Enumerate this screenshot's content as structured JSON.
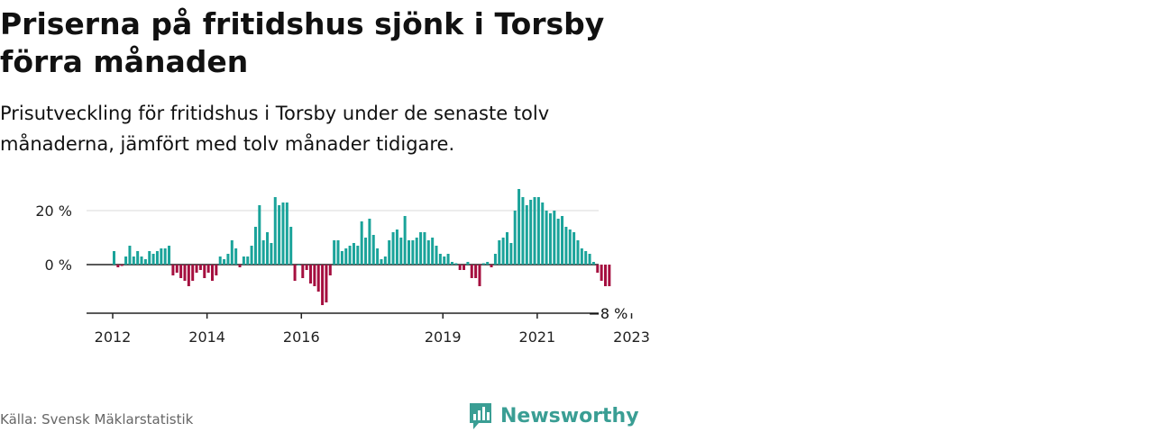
{
  "title": "Priserna på fritidshus sjönk i Torsby förra månaden",
  "subtitle": "Prisutveckling för fritidshus i Torsby under de senaste tolv månaderna, jämfört med tolv månader tidigare.",
  "source": "Källa: Svensk Mäklarstatistik",
  "brand": "Newsworthy",
  "colors": {
    "positive": "#1aa39a",
    "negative": "#a50f3f",
    "brand": "#3a9e94"
  },
  "chart_data": {
    "type": "bar",
    "title": "Priserna på fritidshus sjönk i Torsby förra månaden",
    "subtitle": "Prisutveckling för fritidshus i Torsby under de senaste tolv månaderna, jämfört med tolv månader tidigare.",
    "xlabel": "",
    "ylabel": "",
    "ylim": [
      -18,
      28
    ],
    "x_ticks": [
      "2012",
      "2014",
      "2016",
      "2019",
      "2021",
      "2023"
    ],
    "y_ticks": [
      "0 %",
      "20 %"
    ],
    "y_tick_values": [
      0,
      20
    ],
    "grid": true,
    "annotation": "−8 %",
    "units": "%",
    "start_year": 2012,
    "values": [
      5,
      -1,
      -0.5,
      3,
      7,
      3,
      5,
      3,
      2,
      5,
      4,
      5,
      6,
      6,
      7,
      -4,
      -3,
      -5,
      -6,
      -8,
      -6,
      -3,
      -2,
      -5,
      -3,
      -6,
      -4,
      3,
      2,
      4,
      9,
      6,
      -1,
      3,
      3,
      7,
      14,
      22,
      9,
      12,
      8,
      25,
      22,
      23,
      23,
      14,
      -6,
      0,
      -5,
      -2,
      -7,
      -8,
      -10,
      -15,
      -14,
      -4,
      9,
      9,
      5,
      6,
      7,
      8,
      7,
      16,
      10,
      17,
      11,
      6,
      2,
      3,
      9,
      12,
      13,
      10,
      18,
      9,
      9,
      10,
      12,
      12,
      9,
      10,
      7,
      4,
      3,
      4,
      1,
      0.5,
      -2,
      -2,
      1,
      -5,
      -5,
      -8,
      0.5,
      1,
      -1,
      4,
      9,
      10,
      12,
      8,
      20,
      28,
      25,
      22,
      24,
      25,
      25,
      23,
      20,
      19,
      20,
      17,
      18,
      14,
      13,
      12,
      9,
      6,
      5,
      4,
      1,
      -3,
      -6,
      -8,
      -8
    ]
  }
}
